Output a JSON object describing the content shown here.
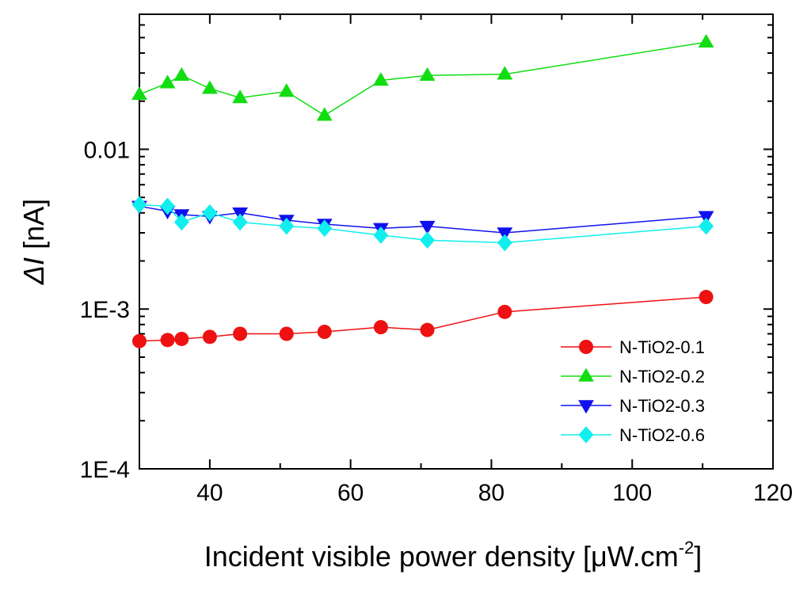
{
  "chart_data": {
    "type": "line",
    "title": "",
    "xlabel": "Incident visible power density [μW.cm",
    "xlabel_sup": "-2",
    "xlabel_close": "]",
    "ylabel_delta": "Δ",
    "ylabel_I": "I",
    "ylabel_unit": " [nA]",
    "y_scale": "log",
    "xlim": [
      30,
      120
    ],
    "ylim": [
      0.0001,
      0.07
    ],
    "x_ticks": [
      40,
      60,
      80,
      100,
      120
    ],
    "x_tick_labels": [
      "40",
      "60",
      "80",
      "100",
      "120"
    ],
    "y_ticks": [
      0.0001,
      0.001,
      0.01
    ],
    "y_tick_labels": [
      "1E-4",
      "1E-3",
      "0.01"
    ],
    "legend_position": "bottom-right",
    "series": [
      {
        "name": "N-TiO2-0.1",
        "color": "#ee1111",
        "marker": "circle",
        "x": [
          30,
          34,
          36,
          40,
          44.3,
          50.9,
          56.3,
          64.3,
          70.9,
          81.9,
          110.5
        ],
        "y": [
          0.00063,
          0.00064,
          0.00065,
          0.00067,
          0.0007,
          0.0007,
          0.00072,
          0.00077,
          0.00074,
          0.00096,
          0.00119
        ]
      },
      {
        "name": "N-TiO2-0.2",
        "color": "#11dd11",
        "marker": "triangle-up",
        "x": [
          30,
          34,
          36,
          40,
          44.3,
          50.9,
          56.3,
          64.3,
          70.9,
          81.9,
          110.5
        ],
        "y": [
          0.022,
          0.026,
          0.029,
          0.024,
          0.021,
          0.023,
          0.0163,
          0.027,
          0.029,
          0.0295,
          0.0468
        ]
      },
      {
        "name": "N-TiO2-0.3",
        "color": "#1111ee",
        "marker": "triangle-down",
        "x": [
          30,
          34,
          36,
          40,
          44.3,
          50.9,
          56.3,
          64.3,
          70.9,
          81.9,
          110.5
        ],
        "y": [
          0.0044,
          0.0041,
          0.0039,
          0.0038,
          0.004,
          0.0036,
          0.0034,
          0.0032,
          0.0033,
          0.003,
          0.0038
        ]
      },
      {
        "name": "N-TiO2-0.6",
        "color": "#11eeee",
        "marker": "diamond",
        "x": [
          30,
          34,
          36,
          40,
          44.3,
          50.9,
          56.3,
          64.3,
          70.9,
          81.9,
          110.5
        ],
        "y": [
          0.0045,
          0.0044,
          0.0035,
          0.004,
          0.0035,
          0.0033,
          0.0032,
          0.0029,
          0.0027,
          0.0026,
          0.0033
        ]
      }
    ]
  }
}
